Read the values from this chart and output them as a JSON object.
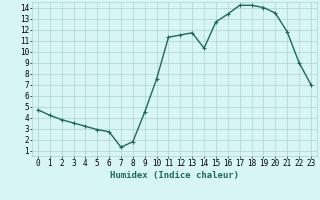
{
  "x": [
    0,
    1,
    2,
    3,
    4,
    5,
    6,
    7,
    8,
    9,
    10,
    11,
    12,
    13,
    14,
    15,
    16,
    17,
    18,
    19,
    20,
    21,
    22,
    23
  ],
  "y": [
    4.7,
    4.2,
    3.8,
    3.5,
    3.2,
    2.9,
    2.7,
    1.3,
    1.8,
    4.5,
    7.5,
    11.3,
    11.5,
    11.7,
    10.3,
    12.7,
    13.4,
    14.2,
    14.2,
    14.0,
    13.5,
    11.8,
    9.0,
    7.0
  ],
  "line_color": "#1a6b5a",
  "marker": "+",
  "markersize": 3,
  "linewidth": 1.0,
  "bg_color": "#d8f5f5",
  "grid_color": "#b0d0d0",
  "xlabel": "Humidex (Indice chaleur)",
  "xlabel_fontsize": 6.5,
  "tick_fontsize": 5.5,
  "ylim": [
    0.5,
    14.5
  ],
  "xlim": [
    -0.5,
    23.5
  ],
  "yticks": [
    1,
    2,
    3,
    4,
    5,
    6,
    7,
    8,
    9,
    10,
    11,
    12,
    13,
    14
  ],
  "xticks": [
    0,
    1,
    2,
    3,
    4,
    5,
    6,
    7,
    8,
    9,
    10,
    11,
    12,
    13,
    14,
    15,
    16,
    17,
    18,
    19,
    20,
    21,
    22,
    23
  ]
}
